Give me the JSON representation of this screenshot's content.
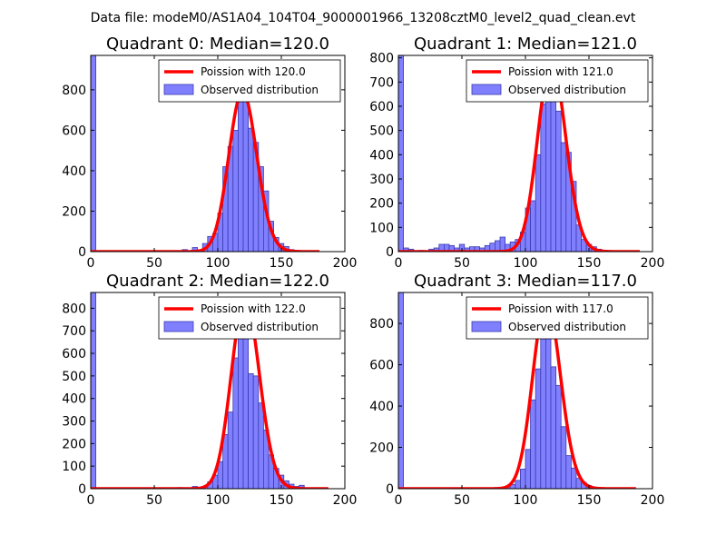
{
  "figure": {
    "suptitle": "Data file: modeM0/AS1A04_104T04_9000001966_13208cztM0_level2_quad_clean.evt"
  },
  "colors": {
    "bar_fill": "#8080ff",
    "bar_edge": "#3a3ab0",
    "fit_line": "#ff0000",
    "axes": "#000000",
    "background": "#ffffff"
  },
  "chart_data": [
    {
      "type": "bar",
      "title": "Quadrant 0: Median=120.0",
      "xlim": [
        0,
        200
      ],
      "ylim": [
        0,
        970
      ],
      "xticks": [
        0,
        50,
        100,
        150,
        200
      ],
      "yticks": [
        0,
        200,
        400,
        600,
        800
      ],
      "bin_width": 4,
      "histogram": [
        {
          "x": 0,
          "h": 970
        },
        {
          "x": 72,
          "h": 10
        },
        {
          "x": 76,
          "h": 5
        },
        {
          "x": 80,
          "h": 20
        },
        {
          "x": 84,
          "h": 8
        },
        {
          "x": 88,
          "h": 40
        },
        {
          "x": 92,
          "h": 75
        },
        {
          "x": 96,
          "h": 90
        },
        {
          "x": 100,
          "h": 190
        },
        {
          "x": 104,
          "h": 420
        },
        {
          "x": 108,
          "h": 520
        },
        {
          "x": 112,
          "h": 600
        },
        {
          "x": 116,
          "h": 750
        },
        {
          "x": 120,
          "h": 810
        },
        {
          "x": 124,
          "h": 610
        },
        {
          "x": 128,
          "h": 540
        },
        {
          "x": 132,
          "h": 420
        },
        {
          "x": 136,
          "h": 300
        },
        {
          "x": 140,
          "h": 150
        },
        {
          "x": 144,
          "h": 70
        },
        {
          "x": 148,
          "h": 40
        },
        {
          "x": 152,
          "h": 25
        },
        {
          "x": 156,
          "h": 10
        }
      ],
      "poisson_mean": 120.0,
      "poisson_amplitude": 790,
      "poisson_range": [
        0,
        180
      ],
      "legend": {
        "fit_label": "Poission with 120.0",
        "hist_label": "Observed distribution",
        "loc": "upper right"
      }
    },
    {
      "type": "bar",
      "title": "Quadrant 1: Median=121.0",
      "xlim": [
        0,
        200
      ],
      "ylim": [
        0,
        810
      ],
      "xticks": [
        0,
        50,
        100,
        150,
        200
      ],
      "yticks": [
        0,
        100,
        200,
        300,
        400,
        500,
        600,
        700,
        800
      ],
      "bin_width": 4,
      "histogram": [
        {
          "x": 0,
          "h": 810
        },
        {
          "x": 4,
          "h": 15
        },
        {
          "x": 8,
          "h": 10
        },
        {
          "x": 16,
          "h": 5
        },
        {
          "x": 24,
          "h": 10
        },
        {
          "x": 28,
          "h": 15
        },
        {
          "x": 32,
          "h": 30
        },
        {
          "x": 36,
          "h": 30
        },
        {
          "x": 40,
          "h": 25
        },
        {
          "x": 44,
          "h": 15
        },
        {
          "x": 48,
          "h": 30
        },
        {
          "x": 52,
          "h": 15
        },
        {
          "x": 56,
          "h": 20
        },
        {
          "x": 60,
          "h": 20
        },
        {
          "x": 64,
          "h": 15
        },
        {
          "x": 68,
          "h": 25
        },
        {
          "x": 72,
          "h": 35
        },
        {
          "x": 76,
          "h": 45
        },
        {
          "x": 80,
          "h": 60
        },
        {
          "x": 84,
          "h": 30
        },
        {
          "x": 88,
          "h": 40
        },
        {
          "x": 92,
          "h": 50
        },
        {
          "x": 96,
          "h": 80
        },
        {
          "x": 100,
          "h": 180
        },
        {
          "x": 104,
          "h": 210
        },
        {
          "x": 108,
          "h": 400
        },
        {
          "x": 112,
          "h": 610
        },
        {
          "x": 116,
          "h": 680
        },
        {
          "x": 120,
          "h": 770
        },
        {
          "x": 124,
          "h": 580
        },
        {
          "x": 128,
          "h": 450
        },
        {
          "x": 132,
          "h": 410
        },
        {
          "x": 136,
          "h": 290
        },
        {
          "x": 140,
          "h": 110
        },
        {
          "x": 144,
          "h": 50
        },
        {
          "x": 148,
          "h": 30
        },
        {
          "x": 152,
          "h": 20
        },
        {
          "x": 156,
          "h": 10
        }
      ],
      "poisson_mean": 121.0,
      "poisson_amplitude": 785,
      "poisson_range": [
        0,
        190
      ],
      "legend": {
        "fit_label": "Poission with 121.0",
        "hist_label": "Observed distribution",
        "loc": "upper right"
      }
    },
    {
      "type": "bar",
      "title": "Quadrant 2: Median=122.0",
      "xlim": [
        0,
        200
      ],
      "ylim": [
        0,
        870
      ],
      "xticks": [
        0,
        50,
        100,
        150,
        200
      ],
      "yticks": [
        0,
        100,
        200,
        300,
        400,
        500,
        600,
        700,
        800
      ],
      "bin_width": 4,
      "histogram": [
        {
          "x": 0,
          "h": 870
        },
        {
          "x": 68,
          "h": 5
        },
        {
          "x": 80,
          "h": 10
        },
        {
          "x": 84,
          "h": 5
        },
        {
          "x": 88,
          "h": 10
        },
        {
          "x": 92,
          "h": 30
        },
        {
          "x": 96,
          "h": 60
        },
        {
          "x": 100,
          "h": 120
        },
        {
          "x": 104,
          "h": 240
        },
        {
          "x": 108,
          "h": 340
        },
        {
          "x": 112,
          "h": 580
        },
        {
          "x": 116,
          "h": 690
        },
        {
          "x": 120,
          "h": 800
        },
        {
          "x": 124,
          "h": 510
        },
        {
          "x": 128,
          "h": 500
        },
        {
          "x": 132,
          "h": 380
        },
        {
          "x": 136,
          "h": 260
        },
        {
          "x": 140,
          "h": 150
        },
        {
          "x": 144,
          "h": 90
        },
        {
          "x": 148,
          "h": 60
        },
        {
          "x": 152,
          "h": 35
        },
        {
          "x": 156,
          "h": 20
        },
        {
          "x": 160,
          "h": 10
        },
        {
          "x": 164,
          "h": 15
        }
      ],
      "poisson_mean": 122.0,
      "poisson_amplitude": 840,
      "poisson_range": [
        0,
        187
      ],
      "legend": {
        "fit_label": "Poission with 122.0",
        "hist_label": "Observed distribution",
        "loc": "upper right"
      }
    },
    {
      "type": "bar",
      "title": "Quadrant 3: Median=117.0",
      "xlim": [
        0,
        200
      ],
      "ylim": [
        0,
        950
      ],
      "xticks": [
        0,
        50,
        100,
        150,
        200
      ],
      "yticks": [
        0,
        200,
        400,
        600,
        800
      ],
      "bin_width": 4,
      "histogram": [
        {
          "x": 0,
          "h": 950
        },
        {
          "x": 76,
          "h": 5
        },
        {
          "x": 84,
          "h": 10
        },
        {
          "x": 88,
          "h": 20
        },
        {
          "x": 92,
          "h": 40
        },
        {
          "x": 96,
          "h": 95
        },
        {
          "x": 100,
          "h": 190
        },
        {
          "x": 104,
          "h": 430
        },
        {
          "x": 108,
          "h": 580
        },
        {
          "x": 112,
          "h": 760
        },
        {
          "x": 116,
          "h": 840
        },
        {
          "x": 120,
          "h": 590
        },
        {
          "x": 124,
          "h": 500
        },
        {
          "x": 128,
          "h": 300
        },
        {
          "x": 132,
          "h": 160
        },
        {
          "x": 136,
          "h": 100
        },
        {
          "x": 140,
          "h": 50
        },
        {
          "x": 144,
          "h": 30
        },
        {
          "x": 148,
          "h": 15
        }
      ],
      "poisson_mean": 117.0,
      "poisson_amplitude": 910,
      "poisson_range": [
        0,
        187
      ],
      "legend": {
        "fit_label": "Poission with 117.0",
        "hist_label": "Observed distribution",
        "loc": "upper right"
      }
    }
  ]
}
